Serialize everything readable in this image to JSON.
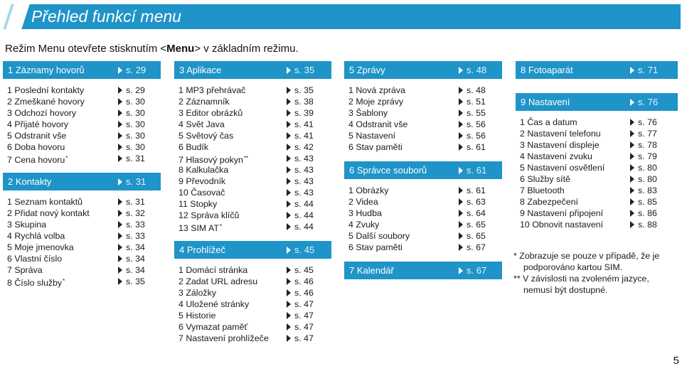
{
  "title": "Přehled funkcí menu",
  "intro": {
    "before": "Režim Menu otevřete stisknutím <",
    "key": "Menu",
    "after": "> v základním režimu."
  },
  "columns": [
    {
      "sections": [
        {
          "header": "1  Záznamy hovorů",
          "page": "s. 29",
          "items": [
            {
              "label": "1  Poslední kontakty",
              "page": "s. 29"
            },
            {
              "label": "2  Zmeškané hovory",
              "page": "s. 30"
            },
            {
              "label": "3  Odchozí hovory",
              "page": "s. 30"
            },
            {
              "label": "4  Přijaté hovory",
              "page": "s. 30"
            },
            {
              "label": "5  Odstranit vše",
              "page": "s. 30"
            },
            {
              "label": "6  Doba hovoru",
              "page": "s. 30"
            },
            {
              "label": "7  Cena hovoru",
              "sup": "*",
              "page": "s. 31"
            }
          ]
        },
        {
          "header": "2  Kontakty",
          "page": "s. 31",
          "items": [
            {
              "label": "1  Seznam kontaktů",
              "page": "s. 31"
            },
            {
              "label": "2  Přidat nový kontakt",
              "page": "s. 32"
            },
            {
              "label": "3  Skupina",
              "page": "s. 33"
            },
            {
              "label": "4  Rychlá volba",
              "page": "s. 33"
            },
            {
              "label": "5  Moje jmenovka",
              "page": "s. 34"
            },
            {
              "label": "6  Vlastní číslo",
              "page": "s. 34"
            },
            {
              "label": "7  Správa",
              "page": "s. 34"
            },
            {
              "label": "8  Číslo služby",
              "sup": "*",
              "page": "s. 35"
            }
          ]
        }
      ]
    },
    {
      "sections": [
        {
          "header": "3  Aplikace",
          "page": "s. 35",
          "items": [
            {
              "label": "1  MP3 přehrávač",
              "page": "s. 35"
            },
            {
              "label": "2  Záznamník",
              "page": "s. 38"
            },
            {
              "label": "3  Editor obrázků",
              "page": "s. 39"
            },
            {
              "label": "4  Svět Java",
              "page": "s. 41"
            },
            {
              "label": "5  Světový čas",
              "page": "s. 41"
            },
            {
              "label": "6  Budík",
              "page": "s. 42"
            },
            {
              "label": "7  Hlasový pokyn",
              "sup": "**",
              "page": "s. 43"
            },
            {
              "label": "8  Kalkulačka",
              "page": "s. 43"
            },
            {
              "label": "9  Převodník",
              "page": "s. 43"
            },
            {
              "label": "10  Časovač",
              "page": "s. 43"
            },
            {
              "label": "11  Stopky",
              "page": "s. 44"
            },
            {
              "label": "12  Správa klíčů",
              "page": "s. 44"
            },
            {
              "label": "13  SIM AT",
              "sup": "*",
              "page": "s. 44"
            }
          ]
        },
        {
          "header": "4  Prohlížeč",
          "page": "s. 45",
          "items": [
            {
              "label": "1  Domácí stránka",
              "page": "s. 45"
            },
            {
              "label": "2  Zadat URL adresu",
              "page": "s. 46"
            },
            {
              "label": "3  Záložky",
              "page": "s. 46"
            },
            {
              "label": "4  Uložené stránky",
              "page": "s. 47"
            },
            {
              "label": "5  Historie",
              "page": "s. 47"
            },
            {
              "label": "6  Vymazat paměť",
              "page": "s. 47"
            },
            {
              "label": "7  Nastavení prohlížeče",
              "page": "s. 47"
            }
          ]
        }
      ]
    },
    {
      "sections": [
        {
          "header": "5  Zprávy",
          "page": "s. 48",
          "items": [
            {
              "label": "1  Nová zpráva",
              "page": "s. 48"
            },
            {
              "label": "2  Moje zprávy",
              "page": "s. 51"
            },
            {
              "label": "3  Šablony",
              "page": "s. 55"
            },
            {
              "label": "4  Odstranit vše",
              "page": "s. 56"
            },
            {
              "label": "5  Nastavení",
              "page": "s. 56"
            },
            {
              "label": "6  Stav paměti",
              "page": "s. 61"
            }
          ]
        },
        {
          "header": "6  Správce souborů",
          "page": "s. 61",
          "items": [
            {
              "label": "1  Obrázky",
              "page": "s. 61"
            },
            {
              "label": "2  Videa",
              "page": "s. 63"
            },
            {
              "label": "3  Hudba",
              "page": "s. 64"
            },
            {
              "label": "4  Zvuky",
              "page": "s. 65"
            },
            {
              "label": "5  Další soubory",
              "page": "s. 65"
            },
            {
              "label": "6  Stav paměti",
              "page": "s. 67"
            }
          ]
        },
        {
          "header": "7  Kalendář",
          "page": "s. 67",
          "items": []
        }
      ]
    },
    {
      "sections": [
        {
          "header": "8  Fotoaparát",
          "page": "s. 71",
          "items": []
        },
        {
          "header": "9  Nastavení",
          "page": "s. 76",
          "items": [
            {
              "label": "1  Čas a datum",
              "page": "s. 76"
            },
            {
              "label": "2  Nastavení telefonu",
              "page": "s. 77"
            },
            {
              "label": "3  Nastavení displeje",
              "page": "s. 78"
            },
            {
              "label": "4  Nastavení zvuku",
              "page": "s. 79"
            },
            {
              "label": "5  Nastavení osvětlení",
              "page": "s. 80"
            },
            {
              "label": "6  Služby sítě",
              "page": "s. 80"
            },
            {
              "label": "7  Bluetooth",
              "page": "s. 83"
            },
            {
              "label": "8  Zabezpečení",
              "page": "s. 85"
            },
            {
              "label": "9  Nastavení připojení",
              "page": "s. 86"
            },
            {
              "label": "10  Obnovit nastavení",
              "page": "s. 88"
            }
          ]
        }
      ]
    }
  ],
  "notes": [
    "* Zobrazuje se pouze v případě, že je",
    "podporováno kartou SIM.",
    "** V závislosti na zvoleném jazyce,",
    "nemusí být dostupné."
  ],
  "page_number": "5",
  "colors": {
    "header_bg": "#1f94c8"
  }
}
